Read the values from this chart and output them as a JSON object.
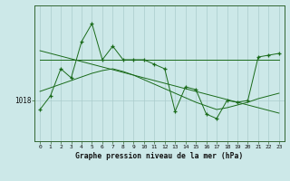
{
  "hours": [
    0,
    1,
    2,
    3,
    4,
    5,
    6,
    7,
    8,
    9,
    10,
    11,
    12,
    13,
    14,
    15,
    16,
    17,
    18,
    19,
    20,
    21,
    22,
    23
  ],
  "pressure_zigzag": [
    1017.0,
    1018.5,
    1021.5,
    1020.5,
    1024.5,
    1026.5,
    1022.5,
    1024.0,
    1022.5,
    1022.5,
    1022.5,
    1022.0,
    1021.5,
    1016.8,
    1019.5,
    1019.2,
    1016.5,
    1016.0,
    1018.0,
    1017.8,
    1018.0,
    1022.8,
    1023.0,
    1023.2
  ],
  "pressure_flat": [
    1022.5,
    1022.5,
    1022.5,
    1022.5,
    1022.5,
    1022.5,
    1022.5,
    1022.5,
    1022.5,
    1022.5,
    1022.5,
    1022.5,
    1022.5,
    1022.5,
    1022.5,
    1022.5,
    1022.5,
    1022.5,
    1022.5,
    1022.5,
    1022.5,
    1022.5,
    1022.5,
    1022.5
  ],
  "pressure_decline": [
    1023.5,
    1023.2,
    1022.9,
    1022.6,
    1022.3,
    1022.0,
    1021.7,
    1021.4,
    1021.1,
    1020.8,
    1020.5,
    1020.2,
    1019.9,
    1019.6,
    1019.3,
    1019.0,
    1018.7,
    1018.4,
    1018.1,
    1017.8,
    1017.5,
    1017.2,
    1016.9,
    1016.6
  ],
  "pressure_rise_fall": [
    1019.0,
    1019.4,
    1019.8,
    1020.2,
    1020.6,
    1021.0,
    1021.3,
    1021.5,
    1021.2,
    1020.8,
    1020.3,
    1019.8,
    1019.3,
    1018.8,
    1018.3,
    1017.8,
    1017.4,
    1017.0,
    1017.2,
    1017.5,
    1017.8,
    1018.2,
    1018.5,
    1018.8
  ],
  "ytick_value": 1018,
  "bg_color": "#cce8e8",
  "grid_color": "#aacccc",
  "line_color": "#1a6b1a",
  "xlabel": "Graphe pression niveau de la mer (hPa)",
  "xlim": [
    -0.5,
    23.5
  ],
  "ylim": [
    1013.5,
    1028.5
  ]
}
